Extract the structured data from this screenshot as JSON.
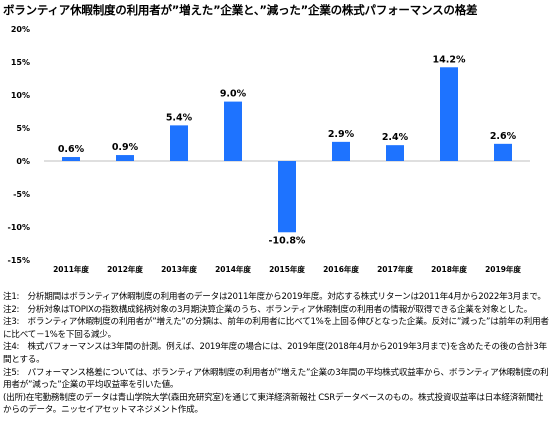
{
  "title": "ボランティア休暇制度の利用者が”増えた”企業と、”減った”企業の株式パフォーマンスの格差",
  "chart_data": {
    "type": "bar",
    "categories": [
      "2011年度",
      "2012年度",
      "2013年度",
      "2014年度",
      "2015年度",
      "2016年度",
      "2017年度",
      "2018年度",
      "2019年度"
    ],
    "values": [
      0.6,
      0.9,
      5.4,
      9.0,
      -10.8,
      2.9,
      2.4,
      14.2,
      2.6
    ],
    "data_labels": [
      "0.6%",
      "0.9%",
      "5.4%",
      "9.0%",
      "-10.8%",
      "2.9%",
      "2.4%",
      "14.2%",
      "2.6%"
    ],
    "ylim": [
      -15,
      20
    ],
    "yticks": [
      -15,
      -10,
      -5,
      0,
      5,
      10,
      15,
      20
    ],
    "ytick_labels": [
      "-15%",
      "-10%",
      "-5%",
      "0%",
      "5%",
      "10%",
      "15%",
      "20%"
    ],
    "bar_color": "#1e73ff",
    "grid": false,
    "legend": "none"
  },
  "notes": [
    "注1:　分析期間はボランティア休暇制度の利用者のデータは2011年度から2019年度。対応する株式リターンは2011年4月から2022年3月まで。",
    "注2:　分析対象はTOPIXの指数構成銘柄対象の3月期決算企業のうち、ボランティア休暇制度の利用者の情報が取得できる企業を対象とした。",
    "注3:　ボランティア休暇制度の利用者が”増えた”の分類は、前年の利用者に比べて1%を上回る伸びとなった企業。反対に”減った”は前年の利用者に比べて－1%を下回る減少。",
    "注4:　株式パフォーマンスは3年間の計測。例えば、2019年度の場合には、2019年度(2018年4月から2019年3月まで)を含めたその後の合計3年間とする。",
    "注5:　パフォーマンス格差については、ボランティア休暇制度の利用者が”増えた”企業の3年間の平均株式収益率から、ボランティア休暇制度の利用者が”減った”企業の平均収益率を引いた値。",
    "(出所)在宅勤務制度のデータは青山学院大学(森田充研究室)を通じて東洋経済新報社 CSRデータベースのもの。株式投資収益率は日本経済新聞社からのデータ。ニッセイアセットマネジメント作成。"
  ]
}
